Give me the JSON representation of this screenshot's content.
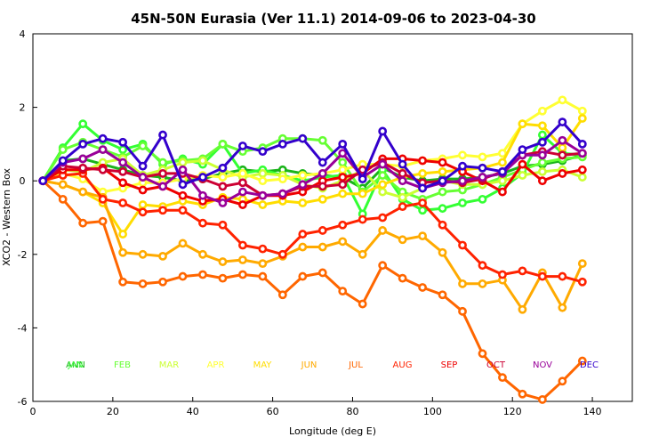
{
  "chart_data": {
    "type": "line",
    "title": "45N-50N Eurasia (Ver 11.1)   2014-09-06 to 2023-04-30",
    "xlabel": "Longitude (deg E)",
    "ylabel": "XCO2 - Western Box",
    "xlim": [
      0,
      150
    ],
    "ylim": [
      -6,
      4
    ],
    "xticks": [
      0,
      20,
      40,
      60,
      80,
      100,
      120,
      140
    ],
    "yticks": [
      -6,
      -4,
      -2,
      0,
      2,
      4
    ],
    "x": [
      2.5,
      7.5,
      12.5,
      17.5,
      22.5,
      27.5,
      32.5,
      37.5,
      42.5,
      47.5,
      52.5,
      57.5,
      62.5,
      67.5,
      72.5,
      77.5,
      82.5,
      87.5,
      92.5,
      97.5,
      102.5,
      107.5,
      112.5,
      117.5,
      122.5,
      127.5,
      132.5,
      137.5
    ],
    "series": [
      {
        "name": "ANN",
        "color": "#1ab31a",
        "values": [
          0,
          0.55,
          0.6,
          0.45,
          0.3,
          0.15,
          0.1,
          0,
          0.05,
          0.2,
          0.3,
          0.25,
          0.3,
          0.2,
          0.15,
          0.1,
          -0.2,
          0.35,
          0.1,
          0.0,
          0.05,
          0.05,
          0.1,
          0.2,
          0.4,
          0.45,
          0.55,
          0.7
        ]
      },
      {
        "name": "JAN",
        "color": "#33ff33",
        "values": [
          0,
          0.9,
          1.55,
          1.1,
          0.85,
          1.0,
          0.45,
          0.6,
          0.45,
          1.0,
          0.2,
          0.3,
          0.15,
          0.0,
          0.1,
          0.15,
          -0.9,
          0.3,
          -0.5,
          -0.8,
          -0.75,
          -0.6,
          -0.5,
          -0.2,
          0.2,
          1.25,
          0.75,
          0.7
        ]
      },
      {
        "name": "FEB",
        "color": "#66ff33",
        "values": [
          0,
          0.85,
          1.05,
          0.85,
          0.65,
          0.95,
          0.5,
          0.55,
          0.6,
          1.0,
          0.8,
          0.9,
          1.15,
          1.15,
          1.1,
          0.5,
          -0.3,
          0.15,
          -0.3,
          -0.5,
          -0.3,
          -0.25,
          -0.1,
          0.1,
          0.3,
          0.5,
          0.6,
          0.65
        ]
      },
      {
        "name": "MAR",
        "color": "#ccff33",
        "values": [
          0,
          0.3,
          0.25,
          0.5,
          0.6,
          0.15,
          0.3,
          0.5,
          0.55,
          0.3,
          0.1,
          0.2,
          0.15,
          -0.1,
          -0.2,
          0.0,
          0.3,
          -0.3,
          -0.45,
          -0.2,
          0.0,
          -0.1,
          -0.1,
          0.0,
          0.15,
          0.25,
          0.3,
          0.1
        ]
      },
      {
        "name": "APR",
        "color": "#ffff33",
        "values": [
          0,
          0.2,
          0.05,
          -0.3,
          -0.2,
          -0.05,
          -0.05,
          0.05,
          0.15,
          0.1,
          0.2,
          0.0,
          0.05,
          0.15,
          0.2,
          0.3,
          0.45,
          0.45,
          0.4,
          0.55,
          0.6,
          0.7,
          0.65,
          0.75,
          1.55,
          1.9,
          2.2,
          1.9
        ]
      },
      {
        "name": "MAY",
        "color": "#ffdd00",
        "values": [
          0,
          -0.1,
          -0.3,
          -0.6,
          -1.45,
          -0.65,
          -0.7,
          -0.55,
          -0.65,
          -0.45,
          -0.5,
          -0.65,
          -0.55,
          -0.6,
          -0.5,
          -0.35,
          -0.35,
          -0.1,
          0.1,
          0.2,
          0.25,
          0.3,
          0.35,
          0.5,
          1.55,
          1.5,
          0.9,
          1.7
        ]
      },
      {
        "name": "JUN",
        "color": "#ffaa00",
        "values": [
          0,
          -0.1,
          -0.3,
          -0.45,
          -1.95,
          -2.0,
          -2.05,
          -1.7,
          -2.0,
          -2.2,
          -2.15,
          -2.25,
          -2.05,
          -1.8,
          -1.8,
          -1.65,
          -2.0,
          -1.35,
          -1.6,
          -1.5,
          -1.95,
          -2.8,
          -2.8,
          -2.7,
          -3.5,
          -2.5,
          -3.45,
          -2.25
        ]
      },
      {
        "name": "JUL",
        "color": "#ff6600",
        "values": [
          0,
          -0.5,
          -1.15,
          -1.1,
          -2.75,
          -2.8,
          -2.75,
          -2.6,
          -2.55,
          -2.65,
          -2.55,
          -2.6,
          -3.1,
          -2.6,
          -2.5,
          -3.0,
          -3.35,
          -2.3,
          -2.65,
          -2.9,
          -3.1,
          -3.55,
          -4.7,
          -5.35,
          -5.8,
          -5.95,
          -5.45,
          -4.9
        ]
      },
      {
        "name": "AUG",
        "color": "#ff2200",
        "values": [
          0,
          0.15,
          0.2,
          -0.5,
          -0.6,
          -0.85,
          -0.8,
          -0.8,
          -1.15,
          -1.2,
          -1.75,
          -1.85,
          -2.0,
          -1.45,
          -1.35,
          -1.2,
          -1.05,
          -1.0,
          -0.7,
          -0.6,
          -1.2,
          -1.75,
          -2.3,
          -2.55,
          -2.45,
          -2.6,
          -2.6,
          -2.75
        ]
      },
      {
        "name": "SEP",
        "color": "#ee0000",
        "values": [
          0,
          0.3,
          0.3,
          0.35,
          -0.05,
          -0.25,
          -0.15,
          -0.4,
          -0.55,
          -0.5,
          -0.65,
          -0.4,
          -0.4,
          -0.3,
          0.0,
          0.1,
          0.2,
          0.6,
          0.6,
          0.55,
          0.5,
          0.25,
          0.0,
          -0.3,
          0.45,
          0.0,
          0.2,
          0.3
        ]
      },
      {
        "name": "OCT",
        "color": "#cc0033",
        "values": [
          0,
          0.4,
          0.35,
          0.3,
          0.25,
          0.1,
          0.2,
          0.2,
          0.05,
          -0.15,
          -0.05,
          -0.4,
          -0.35,
          -0.15,
          -0.15,
          -0.1,
          0.3,
          0.5,
          0.2,
          -0.05,
          0.0,
          -0.05,
          0.05,
          0.25,
          0.7,
          0.8,
          0.7,
          0.75
        ]
      },
      {
        "name": "NOV",
        "color": "#990099",
        "values": [
          0,
          0.5,
          0.6,
          0.85,
          0.5,
          0.1,
          -0.15,
          0.3,
          -0.4,
          -0.6,
          -0.3,
          -0.4,
          -0.35,
          -0.1,
          0.2,
          0.75,
          0.1,
          0.45,
          0.0,
          -0.2,
          -0.05,
          0.0,
          0.1,
          0.2,
          0.7,
          0.7,
          1.1,
          0.75
        ]
      },
      {
        "name": "DEC",
        "color": "#3300cc",
        "values": [
          0,
          0.55,
          1.0,
          1.15,
          1.05,
          0.4,
          1.25,
          -0.1,
          0.1,
          0.35,
          0.95,
          0.8,
          1.0,
          1.15,
          0.5,
          1.0,
          0.05,
          1.35,
          0.45,
          -0.2,
          0.0,
          0.4,
          0.35,
          0.25,
          0.85,
          1.05,
          1.6,
          1.0
        ]
      }
    ],
    "legend_placement": "bottom-inside"
  }
}
